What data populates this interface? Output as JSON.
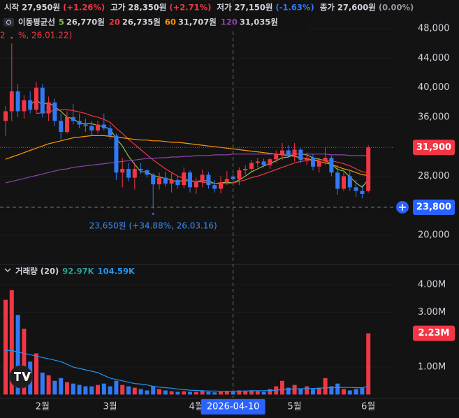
{
  "chart_data": [
    {
      "type": "candlestick",
      "ohlc_legend": [
        {
          "label": "시작",
          "value": "27,950원",
          "change": "(+1.26%)",
          "color": "#f23645"
        },
        {
          "label": "고가",
          "value": "28,350원",
          "change": "(+2.71%)",
          "color": "#f23645"
        },
        {
          "label": "저가",
          "value": "27,150원",
          "change": "(-1.63%)",
          "color": "#3179f5"
        },
        {
          "label": "종가",
          "value": "27,600원",
          "change": "(0.00%)",
          "color": "#9598a1"
        }
      ],
      "ma_legend_title": "이동평균선",
      "categories": [
        null,
        null,
        null,
        null,
        null,
        null,
        "2월",
        null,
        null,
        null,
        null,
        null,
        null,
        null,
        null,
        null,
        null,
        "3월",
        null,
        null,
        null,
        null,
        null,
        null,
        null,
        null,
        null,
        null,
        null,
        null,
        null,
        "4월",
        null,
        null,
        null,
        null,
        null,
        null,
        null,
        null,
        null,
        null,
        null,
        null,
        null,
        null,
        null,
        "5월",
        null,
        null,
        null,
        null,
        null,
        null,
        null,
        null,
        null,
        null,
        null,
        "6월"
      ],
      "open": [
        35500,
        36800,
        39500,
        36800,
        38300,
        37000,
        40000,
        36500,
        38000,
        35500,
        34000,
        36000,
        35500,
        35000,
        34800,
        34200,
        35000,
        34500,
        33500,
        28500,
        29000,
        27800,
        29000,
        28800,
        28200,
        26900,
        27800,
        27000,
        27500,
        26800,
        28500,
        26500,
        27200,
        28200,
        26800,
        26300,
        27200,
        27950,
        27600,
        28800,
        29000,
        29800,
        30000,
        29500,
        30300,
        31000,
        31500,
        30800,
        31600,
        30200,
        30500,
        29300,
        30000,
        30500,
        28500,
        26300,
        28000,
        26500,
        26000,
        26000
      ],
      "high": [
        37500,
        46000,
        40500,
        39000,
        39500,
        40800,
        40500,
        38800,
        38500,
        36500,
        36800,
        37800,
        36500,
        35800,
        35500,
        35500,
        36500,
        35000,
        33800,
        30500,
        29800,
        29800,
        29800,
        29000,
        28400,
        28500,
        28600,
        28400,
        28000,
        29200,
        28800,
        27800,
        28900,
        28600,
        27500,
        28000,
        28700,
        28350,
        29200,
        29500,
        30200,
        30500,
        30400,
        30500,
        31500,
        32500,
        32200,
        32500,
        31800,
        31200,
        31000,
        30500,
        32000,
        30800,
        29500,
        28500,
        28800,
        27500,
        26800,
        32200
      ],
      "low": [
        33500,
        35500,
        36000,
        35800,
        36500,
        36500,
        36000,
        35500,
        34800,
        33000,
        33800,
        35000,
        34500,
        34000,
        33500,
        33800,
        34200,
        33000,
        27500,
        26500,
        27300,
        26200,
        28300,
        27800,
        23650,
        26200,
        26600,
        25800,
        26300,
        26400,
        25800,
        25600,
        26500,
        26300,
        25800,
        25700,
        26800,
        27150,
        26800,
        28200,
        28500,
        29200,
        29200,
        29000,
        29800,
        30200,
        30500,
        30000,
        29800,
        29500,
        28800,
        28500,
        29500,
        28000,
        25500,
        26000,
        26000,
        25200,
        25000,
        25800
      ],
      "close": [
        36800,
        39500,
        36800,
        38300,
        37000,
        40000,
        36500,
        38000,
        35500,
        34000,
        36000,
        35500,
        35000,
        34800,
        34200,
        35000,
        34500,
        33500,
        28500,
        29000,
        27800,
        29000,
        28800,
        28200,
        26900,
        27800,
        27000,
        27500,
        26800,
        28500,
        26500,
        27200,
        28200,
        26800,
        26300,
        27200,
        27600,
        27600,
        28800,
        29000,
        29800,
        30000,
        29500,
        30300,
        31000,
        31500,
        30800,
        31600,
        30200,
        30500,
        29300,
        30000,
        30500,
        28500,
        26300,
        28000,
        26500,
        26000,
        25600,
        31900
      ],
      "value_labels": [
        null,
        null,
        null,
        null,
        null,
        null,
        null,
        null,
        null,
        null,
        null,
        null,
        null,
        null,
        null,
        null,
        null,
        null,
        null,
        null,
        null,
        null,
        null,
        null,
        null,
        null,
        null,
        null,
        null,
        null,
        null,
        null,
        null,
        null,
        null,
        null,
        null,
        null,
        null,
        null,
        null,
        null,
        null,
        null,
        null,
        null,
        null,
        null,
        null,
        null,
        null,
        null,
        null,
        null,
        null,
        null,
        null,
        null,
        null,
        "31,900"
      ],
      "up_color": "#f23645",
      "down_color": "#3179f5",
      "overlays": [
        {
          "name": "5",
          "color": "#8bc34a",
          "legend_value": "26,770원",
          "values": [
            null,
            null,
            null,
            null,
            37700,
            38300,
            37700,
            38000,
            37400,
            36800,
            36000,
            35800,
            35200,
            35100,
            35100,
            34900,
            34700,
            34400,
            33100,
            32100,
            30700,
            29600,
            28600,
            28600,
            28100,
            27900,
            27700,
            27500,
            27200,
            27500,
            27300,
            27300,
            27400,
            27400,
            27000,
            27100,
            27200,
            27100,
            27500,
            28000,
            28600,
            29000,
            29400,
            29700,
            30100,
            30500,
            30600,
            31000,
            31000,
            30900,
            30500,
            30300,
            30100,
            29700,
            28900,
            28700,
            27900,
            27100,
            26500,
            27600
          ]
        },
        {
          "name": "20",
          "color": "#f23645",
          "legend_value": "26,735원",
          "values": [
            null,
            null,
            null,
            null,
            null,
            36500,
            36600,
            36800,
            36900,
            37000,
            37000,
            36900,
            36700,
            36500,
            36200,
            36000,
            35700,
            35300,
            34500,
            33800,
            33000,
            32300,
            31600,
            30900,
            30200,
            29600,
            29000,
            28500,
            28000,
            27700,
            27400,
            27300,
            27200,
            27100,
            27000,
            27000,
            27000,
            27100,
            27300,
            27500,
            27800,
            28000,
            28300,
            28600,
            28900,
            29200,
            29500,
            29800,
            30000,
            30100,
            30200,
            30200,
            30200,
            30100,
            29900,
            29700,
            29400,
            29000,
            28600,
            28500
          ]
        },
        {
          "name": "60",
          "color": "#ff9800",
          "legend_value": "31,707원",
          "values": [
            30300,
            30600,
            30900,
            31200,
            31500,
            31800,
            32100,
            32400,
            32600,
            32800,
            33000,
            33200,
            33300,
            33400,
            33500,
            33500,
            33500,
            33400,
            33300,
            33200,
            33100,
            33000,
            32900,
            32900,
            32800,
            32800,
            32700,
            32600,
            32600,
            32500,
            32400,
            32300,
            32200,
            32100,
            32000,
            31900,
            31800,
            31700,
            31600,
            31500,
            31400,
            31300,
            31200,
            31100,
            31000,
            30900,
            30800,
            30700,
            30500,
            30400,
            30200,
            30000,
            29800,
            29600,
            29300,
            29000,
            28800,
            28500,
            28200,
            28100
          ]
        },
        {
          "name": "120",
          "color": "#8e44ad",
          "legend_value": "31,035원",
          "values": [
            27100,
            27300,
            27500,
            27700,
            27900,
            28100,
            28300,
            28500,
            28700,
            28900,
            29000,
            29200,
            29300,
            29400,
            29500,
            29600,
            29700,
            29800,
            29900,
            30000,
            30100,
            30200,
            30300,
            30400,
            30400,
            30500,
            30500,
            30600,
            30600,
            30700,
            30700,
            30800,
            30800,
            30800,
            30900,
            30900,
            30900,
            31000,
            31000,
            31000,
            31000,
            31000,
            31000,
            31000,
            31000,
            31000,
            31000,
            31000,
            31000,
            31000,
            31000,
            31000,
            31000,
            30900,
            30900,
            30900,
            30800,
            30800,
            30800,
            30800
          ]
        }
      ],
      "ylim": [
        16230,
        51880
      ],
      "yticks": [
        {
          "value": 48000,
          "label": "48,000"
        },
        {
          "value": 44000,
          "label": "44,000"
        },
        {
          "value": 40000,
          "label": "40,000"
        },
        {
          "value": 36000,
          "label": "36,000"
        },
        {
          "value": 28000,
          "label": "28,000"
        },
        {
          "value": 20000,
          "label": "20,000"
        }
      ],
      "crosshair_price": {
        "value": 23800,
        "label": "23,800"
      },
      "crosshair_date": "2026-04-10",
      "low_annotation": "23,650원 (+34.88%, 26.03.16)",
      "high_annotation": [
        "2",
        "%, 26.01.22)"
      ]
    },
    {
      "type": "bar",
      "title": "거래량 (20)",
      "legend_values": [
        {
          "text": "92.97K",
          "color": "#26a69a"
        },
        {
          "text": "104.59K",
          "color": "#2196f3"
        }
      ],
      "values": [
        3450000,
        3800000,
        2900000,
        2400000,
        1200000,
        1500000,
        800000,
        700000,
        500000,
        600000,
        450000,
        400000,
        350000,
        300000,
        300000,
        350000,
        400000,
        300000,
        500000,
        350000,
        300000,
        250000,
        200000,
        150000,
        300000,
        200000,
        150000,
        120000,
        100000,
        120000,
        100000,
        100000,
        150000,
        100000,
        80000,
        100000,
        120000,
        100000,
        150000,
        120000,
        150000,
        120000,
        100000,
        200000,
        300000,
        500000,
        250000,
        350000,
        200000,
        300000,
        200000,
        250000,
        600000,
        300000,
        400000,
        200000,
        150000,
        200000,
        250000,
        2230000
      ],
      "value_labels": [
        null,
        null,
        null,
        null,
        null,
        null,
        null,
        null,
        null,
        null,
        null,
        null,
        null,
        null,
        null,
        null,
        null,
        null,
        null,
        null,
        null,
        null,
        null,
        null,
        null,
        null,
        null,
        null,
        null,
        null,
        null,
        null,
        null,
        null,
        null,
        null,
        null,
        null,
        null,
        null,
        null,
        null,
        null,
        null,
        null,
        null,
        null,
        null,
        null,
        null,
        null,
        null,
        null,
        null,
        null,
        null,
        null,
        null,
        null,
        "2.23M"
      ],
      "ma": {
        "color": "#2196f3",
        "values": [
          1600000,
          1600000,
          1550000,
          1500000,
          1450000,
          1400000,
          1350000,
          1300000,
          1250000,
          1200000,
          1100000,
          1000000,
          950000,
          900000,
          850000,
          800000,
          700000,
          600000,
          550000,
          500000,
          450000,
          400000,
          380000,
          350000,
          300000,
          270000,
          250000,
          230000,
          200000,
          180000,
          160000,
          150000,
          140000,
          130000,
          130000,
          120000,
          120000,
          120000,
          130000,
          130000,
          140000,
          140000,
          140000,
          150000,
          160000,
          180000,
          190000,
          200000,
          210000,
          220000,
          220000,
          230000,
          250000,
          250000,
          260000,
          260000,
          260000,
          250000,
          250000,
          300000
        ]
      },
      "ylim": [
        -117000,
        4712000
      ],
      "yticks": [
        {
          "value": 4000000,
          "label": "4.00M"
        },
        {
          "value": 3000000,
          "label": "3.00M"
        },
        {
          "value": 1000000,
          "label": "1.00M"
        }
      ]
    }
  ]
}
